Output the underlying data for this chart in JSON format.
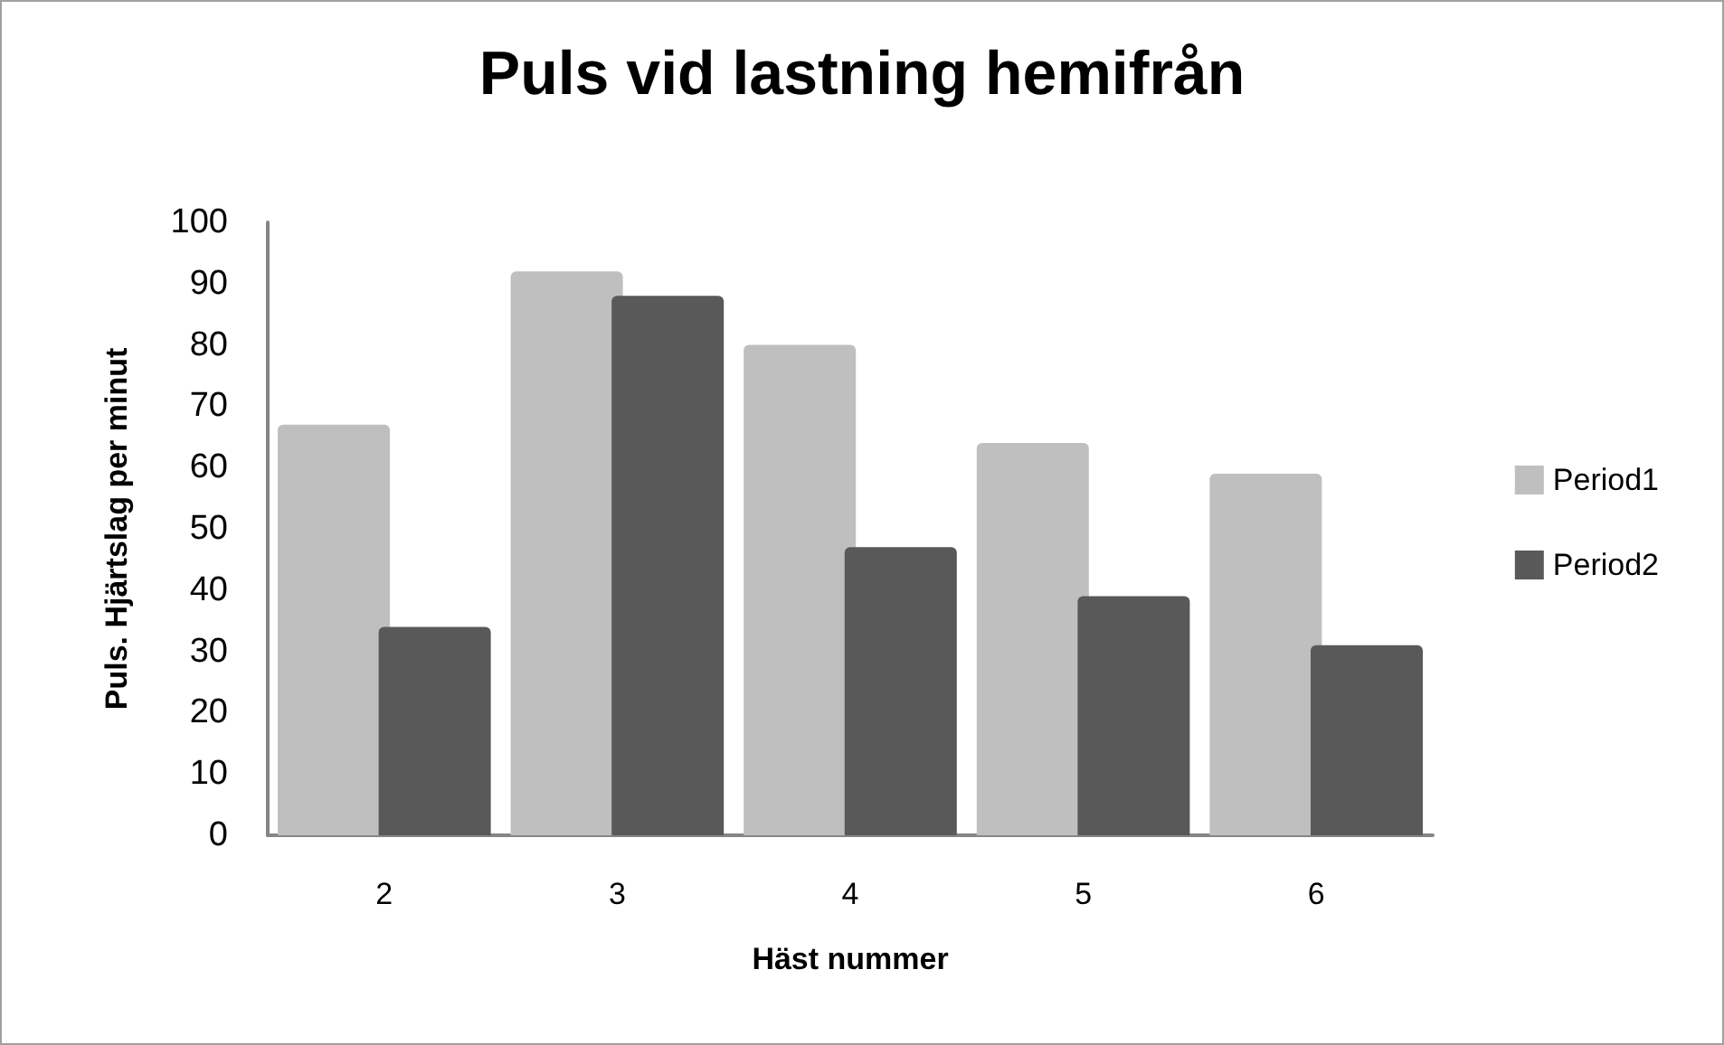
{
  "chart_data": {
    "type": "bar",
    "title": "Puls vid lastning hemifrån",
    "xlabel": "Häst nummer",
    "ylabel": "Puls. Hjärtslag per minut",
    "categories": [
      "2",
      "3",
      "4",
      "5",
      "6"
    ],
    "series": [
      {
        "name": "Period1",
        "color": "#bfbfbf",
        "values": [
          67,
          92,
          80,
          64,
          59
        ]
      },
      {
        "name": "Period2",
        "color": "#595959",
        "values": [
          34,
          88,
          47,
          39,
          31
        ]
      }
    ],
    "ylim": [
      0,
      100
    ],
    "yticks": [
      0,
      10,
      20,
      30,
      40,
      50,
      60,
      70,
      80,
      90,
      100
    ],
    "grid": false,
    "legend": "right"
  }
}
